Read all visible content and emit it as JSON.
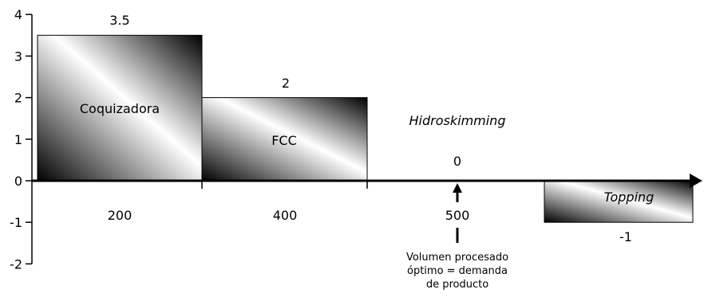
{
  "chart_data": {
    "type": "bar",
    "title": "",
    "xlabel": "",
    "ylabel": "",
    "ylim": [
      -2,
      4
    ],
    "y_ticks": [
      "4",
      "3",
      "2",
      "1",
      "0",
      "-1",
      "-2"
    ],
    "bars": [
      {
        "name": "Coquizadora",
        "value": 3.5,
        "value_label": "3.5",
        "x_label": "200",
        "italic": false
      },
      {
        "name": "FCC",
        "value": 2,
        "value_label": "2",
        "x_label": "400",
        "italic": false
      },
      {
        "name": "Hidroskimming",
        "value": 0,
        "value_label": "0",
        "x_label": "500",
        "italic": true
      },
      {
        "name": "Topping",
        "value": -1,
        "value_label": "-1",
        "x_label": "",
        "italic": true
      }
    ],
    "annotation": {
      "lines": [
        "Volumen procesado",
        "óptimo = demanda",
        "de producto"
      ]
    },
    "colors": {
      "gradient_dark": "#000000",
      "gradient_light": "#ffffff",
      "axis": "#000000"
    }
  }
}
